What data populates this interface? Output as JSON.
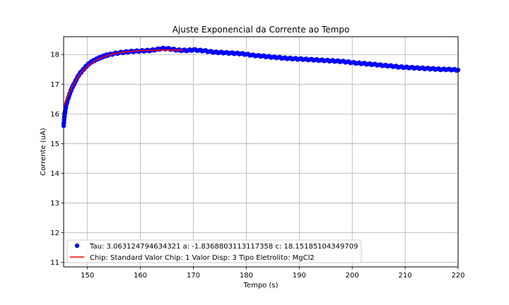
{
  "chart_data": {
    "type": "scatter",
    "title": "Ajuste Exponencial da Corrente ao Tempo",
    "xlabel": "Tempo (s)",
    "ylabel": "Corrente (uA)",
    "xlim": [
      145.5,
      220
    ],
    "ylim": [
      10.85,
      18.6
    ],
    "xticks": [
      150,
      160,
      170,
      180,
      190,
      200,
      210,
      220
    ],
    "yticks": [
      11,
      12,
      13,
      14,
      15,
      16,
      17,
      18
    ],
    "grid": true,
    "legend_position": "lower-left",
    "series": [
      {
        "name": "Tau: 3.063124794634321 a: -1.8368803113117358 c: 18.15185104349709",
        "kind": "scatter",
        "color": "#0000ff",
        "points": [
          [
            145.5,
            15.6
          ],
          [
            145.6,
            15.8
          ],
          [
            145.7,
            16.0
          ],
          [
            145.8,
            16.1
          ],
          [
            146.0,
            16.3
          ],
          [
            146.2,
            16.45
          ],
          [
            146.5,
            16.6
          ],
          [
            146.8,
            16.75
          ],
          [
            147.0,
            16.85
          ],
          [
            147.3,
            16.95
          ],
          [
            147.6,
            17.05
          ],
          [
            148.0,
            17.2
          ],
          [
            148.5,
            17.35
          ],
          [
            149.0,
            17.45
          ],
          [
            149.5,
            17.55
          ],
          [
            150.0,
            17.65
          ],
          [
            150.5,
            17.72
          ],
          [
            151.0,
            17.78
          ],
          [
            151.5,
            17.82
          ],
          [
            152.0,
            17.87
          ],
          [
            152.5,
            17.9
          ],
          [
            153.0,
            17.94
          ],
          [
            153.5,
            17.97
          ],
          [
            154.0,
            17.99
          ],
          [
            155.0,
            18.03
          ],
          [
            156.0,
            18.06
          ],
          [
            157.0,
            18.08
          ],
          [
            158.0,
            18.1
          ],
          [
            159.0,
            18.11
          ],
          [
            160.0,
            18.12
          ],
          [
            161.0,
            18.13
          ],
          [
            162.0,
            18.14
          ],
          [
            163.0,
            18.17
          ],
          [
            164.0,
            18.2
          ],
          [
            165.0,
            18.2
          ],
          [
            166.0,
            18.18
          ],
          [
            167.0,
            18.15
          ],
          [
            168.0,
            18.14
          ],
          [
            169.0,
            18.14
          ],
          [
            170.0,
            18.16
          ],
          [
            171.0,
            18.14
          ],
          [
            172.0,
            18.13
          ],
          [
            173.0,
            18.1
          ],
          [
            174.0,
            18.08
          ],
          [
            175.0,
            18.07
          ],
          [
            176.0,
            18.06
          ],
          [
            177.0,
            18.05
          ],
          [
            178.0,
            18.04
          ],
          [
            179.0,
            18.03
          ],
          [
            180.0,
            18.01
          ],
          [
            181.0,
            17.98
          ],
          [
            182.0,
            17.96
          ],
          [
            183.0,
            17.95
          ],
          [
            184.0,
            17.93
          ],
          [
            185.0,
            17.91
          ],
          [
            186.0,
            17.9
          ],
          [
            187.0,
            17.88
          ],
          [
            188.0,
            17.87
          ],
          [
            189.0,
            17.86
          ],
          [
            190.0,
            17.85
          ],
          [
            191.0,
            17.84
          ],
          [
            192.0,
            17.83
          ],
          [
            193.0,
            17.82
          ],
          [
            194.0,
            17.81
          ],
          [
            195.0,
            17.8
          ],
          [
            196.0,
            17.79
          ],
          [
            197.0,
            17.78
          ],
          [
            198.0,
            17.77
          ],
          [
            199.0,
            17.75
          ],
          [
            200.0,
            17.73
          ],
          [
            201.0,
            17.71
          ],
          [
            202.0,
            17.7
          ],
          [
            203.0,
            17.68
          ],
          [
            204.0,
            17.67
          ],
          [
            205.0,
            17.65
          ],
          [
            206.0,
            17.63
          ],
          [
            207.0,
            17.62
          ],
          [
            208.0,
            17.6
          ],
          [
            209.0,
            17.58
          ],
          [
            210.0,
            17.57
          ],
          [
            211.0,
            17.56
          ],
          [
            212.0,
            17.55
          ],
          [
            213.0,
            17.54
          ],
          [
            214.0,
            17.53
          ],
          [
            215.0,
            17.52
          ],
          [
            216.0,
            17.51
          ],
          [
            217.0,
            17.5
          ],
          [
            218.0,
            17.5
          ],
          [
            219.0,
            17.49
          ],
          [
            220.0,
            17.48
          ]
        ]
      },
      {
        "name": "Chip: Standard Valor Chip: 1 Valor Disp: 3 Tipo Eletrolito: MgCl2",
        "kind": "line",
        "color": "#ff0000",
        "points": [
          [
            145.6,
            16.3
          ],
          [
            146.0,
            16.5
          ],
          [
            146.5,
            16.7
          ],
          [
            147.0,
            16.9
          ],
          [
            147.5,
            17.05
          ],
          [
            148.0,
            17.2
          ],
          [
            148.5,
            17.33
          ],
          [
            149.0,
            17.44
          ],
          [
            149.5,
            17.53
          ],
          [
            150.0,
            17.61
          ],
          [
            151.0,
            17.74
          ],
          [
            152.0,
            17.84
          ],
          [
            153.0,
            17.92
          ],
          [
            154.0,
            17.98
          ],
          [
            155.0,
            18.03
          ],
          [
            156.0,
            18.06
          ],
          [
            157.0,
            18.09
          ],
          [
            158.0,
            18.1
          ],
          [
            159.0,
            18.12
          ],
          [
            160.0,
            18.13
          ],
          [
            162.0,
            18.14
          ],
          [
            164.0,
            18.15
          ],
          [
            166.0,
            18.15
          ],
          [
            168.0,
            18.15
          ]
        ]
      }
    ]
  }
}
